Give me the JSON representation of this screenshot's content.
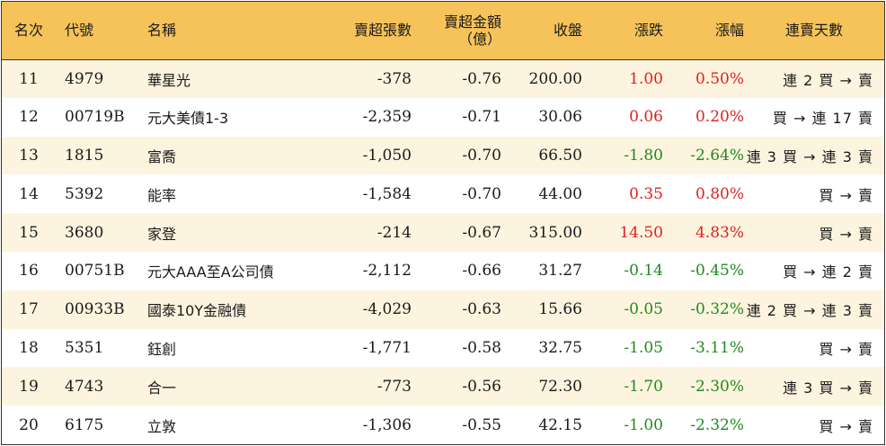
{
  "colors": {
    "header_bg": "#f6c35b",
    "row_alt_bg": "#fdf4df",
    "up": "#e02020",
    "down": "#1f8a1f"
  },
  "headers": {
    "rank": "名次",
    "code": "代號",
    "name": "名稱",
    "net_sell_volume": "賣超張數",
    "net_sell_amount_line1": "賣超金額",
    "net_sell_amount_line2": "（億）",
    "close": "收盤",
    "change": "漲跌",
    "change_pct": "漲幅",
    "consecutive_days": "連賣天數"
  },
  "rows": [
    {
      "rank": "11",
      "code": "4979",
      "name": "華星光",
      "volume": "-378",
      "amount": "-0.76",
      "close": "200.00",
      "change": "1.00",
      "pct": "0.50%",
      "dir": "up",
      "days": "連 2 買 → 賣"
    },
    {
      "rank": "12",
      "code": "00719B",
      "name": "元大美債1-3",
      "volume": "-2,359",
      "amount": "-0.71",
      "close": "30.06",
      "change": "0.06",
      "pct": "0.20%",
      "dir": "up",
      "days": "買 → 連 17 賣"
    },
    {
      "rank": "13",
      "code": "1815",
      "name": "富喬",
      "volume": "-1,050",
      "amount": "-0.70",
      "close": "66.50",
      "change": "-1.80",
      "pct": "-2.64%",
      "dir": "down",
      "days": "連 3 買 → 連 3 賣"
    },
    {
      "rank": "14",
      "code": "5392",
      "name": "能率",
      "volume": "-1,584",
      "amount": "-0.70",
      "close": "44.00",
      "change": "0.35",
      "pct": "0.80%",
      "dir": "up",
      "days": "買 → 賣"
    },
    {
      "rank": "15",
      "code": "3680",
      "name": "家登",
      "volume": "-214",
      "amount": "-0.67",
      "close": "315.00",
      "change": "14.50",
      "pct": "4.83%",
      "dir": "up",
      "days": "買 → 賣"
    },
    {
      "rank": "16",
      "code": "00751B",
      "name": "元大AAA至A公司債",
      "volume": "-2,112",
      "amount": "-0.66",
      "close": "31.27",
      "change": "-0.14",
      "pct": "-0.45%",
      "dir": "down",
      "days": "買 → 連 2 賣"
    },
    {
      "rank": "17",
      "code": "00933B",
      "name": "國泰10Y金融債",
      "volume": "-4,029",
      "amount": "-0.63",
      "close": "15.66",
      "change": "-0.05",
      "pct": "-0.32%",
      "dir": "down",
      "days": "連 2 買 → 連 3 賣"
    },
    {
      "rank": "18",
      "code": "5351",
      "name": "鈺創",
      "volume": "-1,771",
      "amount": "-0.58",
      "close": "32.75",
      "change": "-1.05",
      "pct": "-3.11%",
      "dir": "down",
      "days": "買 → 賣"
    },
    {
      "rank": "19",
      "code": "4743",
      "name": "合一",
      "volume": "-773",
      "amount": "-0.56",
      "close": "72.30",
      "change": "-1.70",
      "pct": "-2.30%",
      "dir": "down",
      "days": "連 3 買 → 賣"
    },
    {
      "rank": "20",
      "code": "6175",
      "name": "立敦",
      "volume": "-1,306",
      "amount": "-0.55",
      "close": "42.15",
      "change": "-1.00",
      "pct": "-2.32%",
      "dir": "down",
      "days": "買 → 賣"
    }
  ]
}
